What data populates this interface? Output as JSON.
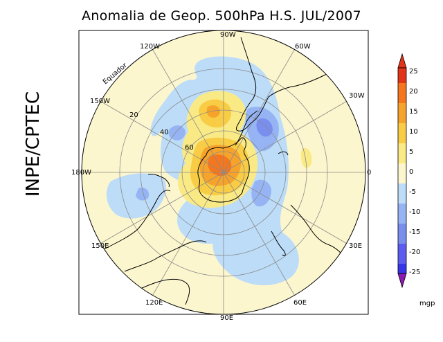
{
  "title": "Anomalia de Geop. 500hPa H.S. JUL/2007",
  "side_label": "INPE/CPTEC",
  "map": {
    "longitude_labels": [
      "90W",
      "60W",
      "30W",
      "0",
      "30E",
      "60E",
      "90E",
      "120E",
      "150E",
      "180W",
      "150W",
      "120W"
    ],
    "latitude_labels": [
      "20",
      "40",
      "60"
    ],
    "equator_label": "Equador"
  },
  "colorbar": {
    "ticks": [
      "25",
      "20",
      "15",
      "10",
      "5",
      "0",
      "-5",
      "-10",
      "-15",
      "-20",
      "-25"
    ],
    "unit": "mgp",
    "colors": [
      "#e23418",
      "#f4771f",
      "#f6a32c",
      "#f8cd45",
      "#faea86",
      "#fcf6ce",
      "#bcdcf8",
      "#96b4f4",
      "#7a8eee",
      "#5c5cf0",
      "#3636e8",
      "#8c1ab0"
    ]
  }
}
